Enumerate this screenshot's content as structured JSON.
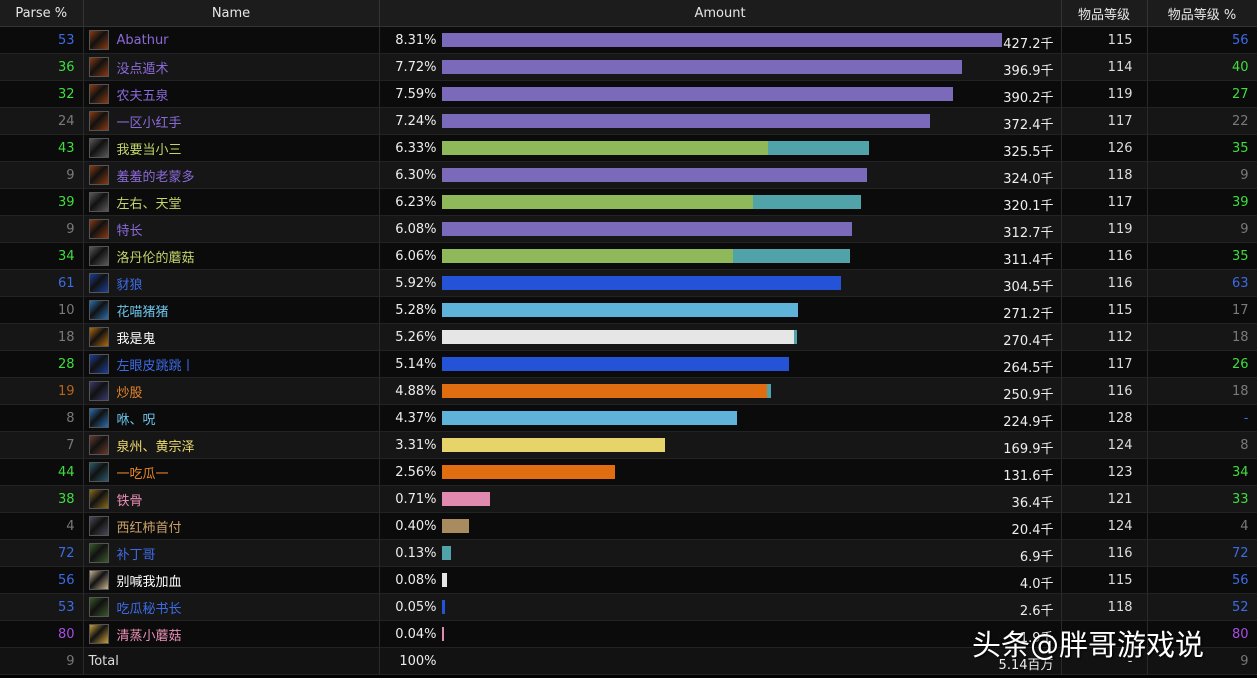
{
  "headers": {
    "parse": "Parse %",
    "name": "Name",
    "amount": "Amount",
    "ilvl": "物品等级",
    "ilvl_pct": "物品等级 %"
  },
  "max_amount": 427.2,
  "rows": [
    {
      "parse": "53",
      "parse_color": "#3d6be6",
      "name": "Abathur",
      "name_color": "#8a6ad8",
      "icon": "warrior-fury-icon",
      "icon_color": "#8a3a12",
      "pct": "8.31%",
      "amount": "427.2千",
      "segments": [
        {
          "v": 427.2,
          "c": "#7b6ab9"
        }
      ],
      "ilvl": "115",
      "ilvl_pct": "56",
      "ilvl_pct_color": "#3d6be6"
    },
    {
      "parse": "36",
      "parse_color": "#3ede3e",
      "name": "没点遁术",
      "name_color": "#8a6ad8",
      "icon": "warrior-fury-icon",
      "icon_color": "#8a3a12",
      "pct": "7.72%",
      "amount": "396.9千",
      "segments": [
        {
          "v": 396.9,
          "c": "#7b6ab9"
        }
      ],
      "ilvl": "114",
      "ilvl_pct": "40",
      "ilvl_pct_color": "#3ede3e"
    },
    {
      "parse": "32",
      "parse_color": "#3ede3e",
      "name": "农夫五泉",
      "name_color": "#8a6ad8",
      "icon": "warrior-fury-icon",
      "icon_color": "#8a3a12",
      "pct": "7.59%",
      "amount": "390.2千",
      "segments": [
        {
          "v": 390.2,
          "c": "#7b6ab9"
        }
      ],
      "ilvl": "119",
      "ilvl_pct": "27",
      "ilvl_pct_color": "#3ede3e"
    },
    {
      "parse": "24",
      "parse_color": "#7a7a7a",
      "name": "一区小红手",
      "name_color": "#8a6ad8",
      "icon": "warrior-fury-icon",
      "icon_color": "#8a3a12",
      "pct": "7.24%",
      "amount": "372.4千",
      "segments": [
        {
          "v": 372.4,
          "c": "#7b6ab9"
        }
      ],
      "ilvl": "117",
      "ilvl_pct": "22",
      "ilvl_pct_color": "#7a7a7a"
    },
    {
      "parse": "43",
      "parse_color": "#3ede3e",
      "name": "我要当小三",
      "name_color": "#c2d66a",
      "icon": "rogue-blade-icon",
      "icon_color": "#5a5a5a",
      "pct": "6.33%",
      "amount": "325.5千",
      "segments": [
        {
          "v": 248.5,
          "c": "#8eb85a"
        },
        {
          "v": 77.0,
          "c": "#4fa3a9"
        }
      ],
      "ilvl": "126",
      "ilvl_pct": "35",
      "ilvl_pct_color": "#3ede3e"
    },
    {
      "parse": "9",
      "parse_color": "#7a7a7a",
      "name": "羞羞的老蒙多",
      "name_color": "#8a6ad8",
      "icon": "warrior-fury-icon",
      "icon_color": "#8a3a12",
      "pct": "6.30%",
      "amount": "324.0千",
      "segments": [
        {
          "v": 324.0,
          "c": "#7b6ab9"
        }
      ],
      "ilvl": "118",
      "ilvl_pct": "9",
      "ilvl_pct_color": "#7a7a7a"
    },
    {
      "parse": "39",
      "parse_color": "#3ede3e",
      "name": "左右、天堂",
      "name_color": "#c2d66a",
      "icon": "rogue-blade-icon",
      "icon_color": "#5a5a5a",
      "pct": "6.23%",
      "amount": "320.1千",
      "segments": [
        {
          "v": 237.5,
          "c": "#8eb85a"
        },
        {
          "v": 82.6,
          "c": "#4fa3a9"
        }
      ],
      "ilvl": "117",
      "ilvl_pct": "39",
      "ilvl_pct_color": "#3ede3e"
    },
    {
      "parse": "9",
      "parse_color": "#7a7a7a",
      "name": "特长",
      "name_color": "#8a6ad8",
      "icon": "warrior-fury-icon",
      "icon_color": "#8a3a12",
      "pct": "6.08%",
      "amount": "312.7千",
      "segments": [
        {
          "v": 312.7,
          "c": "#7b6ab9"
        }
      ],
      "ilvl": "119",
      "ilvl_pct": "9",
      "ilvl_pct_color": "#7a7a7a"
    },
    {
      "parse": "34",
      "parse_color": "#3ede3e",
      "name": "洛丹伦的蘑菇",
      "name_color": "#c2d66a",
      "icon": "rogue-blade-icon",
      "icon_color": "#5a5a5a",
      "pct": "6.06%",
      "amount": "311.4千",
      "segments": [
        {
          "v": 221.9,
          "c": "#8eb85a"
        },
        {
          "v": 89.5,
          "c": "#4fa3a9"
        }
      ],
      "ilvl": "116",
      "ilvl_pct": "35",
      "ilvl_pct_color": "#3ede3e"
    },
    {
      "parse": "61",
      "parse_color": "#3d6be6",
      "name": "豺狼",
      "name_color": "#3d6be6",
      "icon": "shaman-lightning-icon",
      "icon_color": "#1b3f9a",
      "pct": "5.92%",
      "amount": "304.5千",
      "segments": [
        {
          "v": 304.5,
          "c": "#2453d8"
        }
      ],
      "ilvl": "116",
      "ilvl_pct": "63",
      "ilvl_pct_color": "#3d6be6"
    },
    {
      "parse": "10",
      "parse_color": "#7a7a7a",
      "name": "花喵猪猪",
      "name_color": "#6cc3e8",
      "icon": "mage-frost-icon",
      "icon_color": "#2a6fb0",
      "pct": "5.28%",
      "amount": "271.2千",
      "segments": [
        {
          "v": 271.2,
          "c": "#5fb3d9"
        }
      ],
      "ilvl": "115",
      "ilvl_pct": "17",
      "ilvl_pct_color": "#7a7a7a"
    },
    {
      "parse": "18",
      "parse_color": "#7a7a7a",
      "name": "我是鬼",
      "name_color": "#ffffff",
      "icon": "priest-flame-icon",
      "icon_color": "#b06a10",
      "pct": "5.26%",
      "amount": "270.4千",
      "segments": [
        {
          "v": 268.4,
          "c": "#e6e6e6"
        },
        {
          "v": 2.0,
          "c": "#4fa3a9"
        }
      ],
      "ilvl": "112",
      "ilvl_pct": "18",
      "ilvl_pct_color": "#7a7a7a"
    },
    {
      "parse": "28",
      "parse_color": "#3ede3e",
      "name": "左眼皮跳跳丨",
      "name_color": "#3d6be6",
      "icon": "shaman-lightning-icon",
      "icon_color": "#1b3f9a",
      "pct": "5.14%",
      "amount": "264.5千",
      "segments": [
        {
          "v": 264.5,
          "c": "#2453d8"
        }
      ],
      "ilvl": "117",
      "ilvl_pct": "26",
      "ilvl_pct_color": "#3ede3e"
    },
    {
      "parse": "19",
      "parse_color": "#b8651a",
      "name": "炒股",
      "name_color": "#e8862a",
      "icon": "druid-moonfire-icon",
      "icon_color": "#3a3a6a",
      "pct": "4.88%",
      "amount": "250.9千",
      "segments": [
        {
          "v": 247.9,
          "c": "#e06d0f"
        },
        {
          "v": 3.0,
          "c": "#4fa3a9"
        }
      ],
      "ilvl": "116",
      "ilvl_pct": "18",
      "ilvl_pct_color": "#7a7a7a"
    },
    {
      "parse": "8",
      "parse_color": "#7a7a7a",
      "name": "咻、呪",
      "name_color": "#6cc3e8",
      "icon": "mage-frost-icon",
      "icon_color": "#2a6fb0",
      "pct": "4.37%",
      "amount": "224.9千",
      "segments": [
        {
          "v": 224.9,
          "c": "#5fb3d9"
        }
      ],
      "ilvl": "128",
      "ilvl_pct": "-",
      "ilvl_pct_color": "#3d6be6"
    },
    {
      "parse": "7",
      "parse_color": "#7a7a7a",
      "name": "泉州、黄宗泽",
      "name_color": "#f0de6e",
      "icon": "paladin-icon",
      "icon_color": "#6a3a2a",
      "pct": "3.31%",
      "amount": "169.9千",
      "segments": [
        {
          "v": 169.9,
          "c": "#e6d36a"
        }
      ],
      "ilvl": "124",
      "ilvl_pct": "8",
      "ilvl_pct_color": "#7a7a7a"
    },
    {
      "parse": "44",
      "parse_color": "#3ede3e",
      "name": "一吃瓜一",
      "name_color": "#e8862a",
      "icon": "druid-cat-icon",
      "icon_color": "#2a5a6a",
      "pct": "2.56%",
      "amount": "131.6千",
      "segments": [
        {
          "v": 131.6,
          "c": "#e06d0f"
        }
      ],
      "ilvl": "123",
      "ilvl_pct": "34",
      "ilvl_pct_color": "#3ede3e"
    },
    {
      "parse": "38",
      "parse_color": "#3ede3e",
      "name": "铁骨",
      "name_color": "#e98fb5",
      "icon": "paladin-shield-icon",
      "icon_color": "#8a6a1a",
      "pct": "0.71%",
      "amount": "36.4千",
      "segments": [
        {
          "v": 36.4,
          "c": "#e08ab0"
        }
      ],
      "ilvl": "121",
      "ilvl_pct": "33",
      "ilvl_pct_color": "#3ede3e"
    },
    {
      "parse": "4",
      "parse_color": "#7a7a7a",
      "name": "西红柿首付",
      "name_color": "#c9a06a",
      "icon": "warrior-prot-icon",
      "icon_color": "#4a4a5a",
      "pct": "0.40%",
      "amount": "20.4千",
      "segments": [
        {
          "v": 20.4,
          "c": "#a88b5e"
        }
      ],
      "ilvl": "124",
      "ilvl_pct": "4",
      "ilvl_pct_color": "#7a7a7a"
    },
    {
      "parse": "72",
      "parse_color": "#3d6be6",
      "name": "补丁哥",
      "name_color": "#3d6be6",
      "icon": "shaman-resto-icon",
      "icon_color": "#3a5a2a",
      "pct": "0.13%",
      "amount": "6.9千",
      "segments": [
        {
          "v": 6.9,
          "c": "#4fa3a9"
        }
      ],
      "ilvl": "116",
      "ilvl_pct": "72",
      "ilvl_pct_color": "#3d6be6"
    },
    {
      "parse": "56",
      "parse_color": "#3d6be6",
      "name": "别喊我加血",
      "name_color": "#ffffff",
      "icon": "priest-holy-icon",
      "icon_color": "#c8b490",
      "pct": "0.08%",
      "amount": "4.0千",
      "segments": [
        {
          "v": 4.0,
          "c": "#e6e6e6"
        }
      ],
      "ilvl": "115",
      "ilvl_pct": "56",
      "ilvl_pct_color": "#3d6be6"
    },
    {
      "parse": "53",
      "parse_color": "#3d6be6",
      "name": "吃瓜秘书长",
      "name_color": "#3d6be6",
      "icon": "shaman-resto-icon",
      "icon_color": "#3a5a2a",
      "pct": "0.05%",
      "amount": "2.6千",
      "segments": [
        {
          "v": 2.6,
          "c": "#2453d8"
        }
      ],
      "ilvl": "118",
      "ilvl_pct": "52",
      "ilvl_pct_color": "#3d6be6"
    },
    {
      "parse": "80",
      "parse_color": "#a64fe0",
      "name": "清蒸小蘑菇",
      "name_color": "#e98fb5",
      "icon": "paladin-holy-icon",
      "icon_color": "#c8a03a",
      "pct": "0.04%",
      "amount": "1.9千",
      "segments": [
        {
          "v": 1.9,
          "c": "#e08ab0"
        }
      ],
      "ilvl": "",
      "ilvl_pct": "80",
      "ilvl_pct_color": "#a64fe0"
    }
  ],
  "total": {
    "parse": "9",
    "name": "Total",
    "pct": "100%",
    "amount": "5.14百万",
    "ilvl": "-",
    "ilvl_pct": "9"
  },
  "watermark": "头条@胖哥游戏说"
}
